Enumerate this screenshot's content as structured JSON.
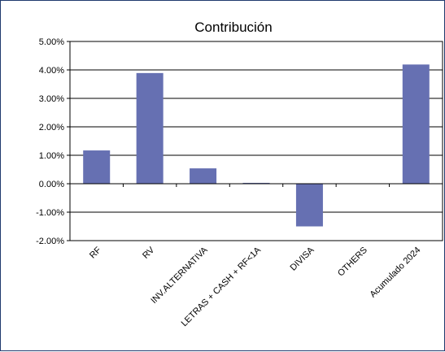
{
  "chart_data": {
    "type": "bar",
    "title": "Contribución",
    "xlabel": "",
    "ylabel": "",
    "categories": [
      "RF",
      "RV",
      "INV.ALTERNATIVA",
      "LETRAS + CASH + RF<1A",
      "DIVISA",
      "OTHERS",
      "Acumulado 2024"
    ],
    "values": [
      1.17,
      3.89,
      0.54,
      0.03,
      -1.5,
      0.0,
      4.19
    ],
    "ylim": [
      -2.0,
      5.0
    ],
    "yticks": [
      5.0,
      4.0,
      3.0,
      2.0,
      1.0,
      0.0,
      -1.0,
      -2.0
    ],
    "ytick_labels": [
      "5.00%",
      "4.00%",
      "3.00%",
      "2.00%",
      "1.00%",
      "0.00%",
      "-1.00%",
      "-2.00%"
    ],
    "grid": true,
    "legend": "none",
    "bar_color": "#6670b2"
  }
}
